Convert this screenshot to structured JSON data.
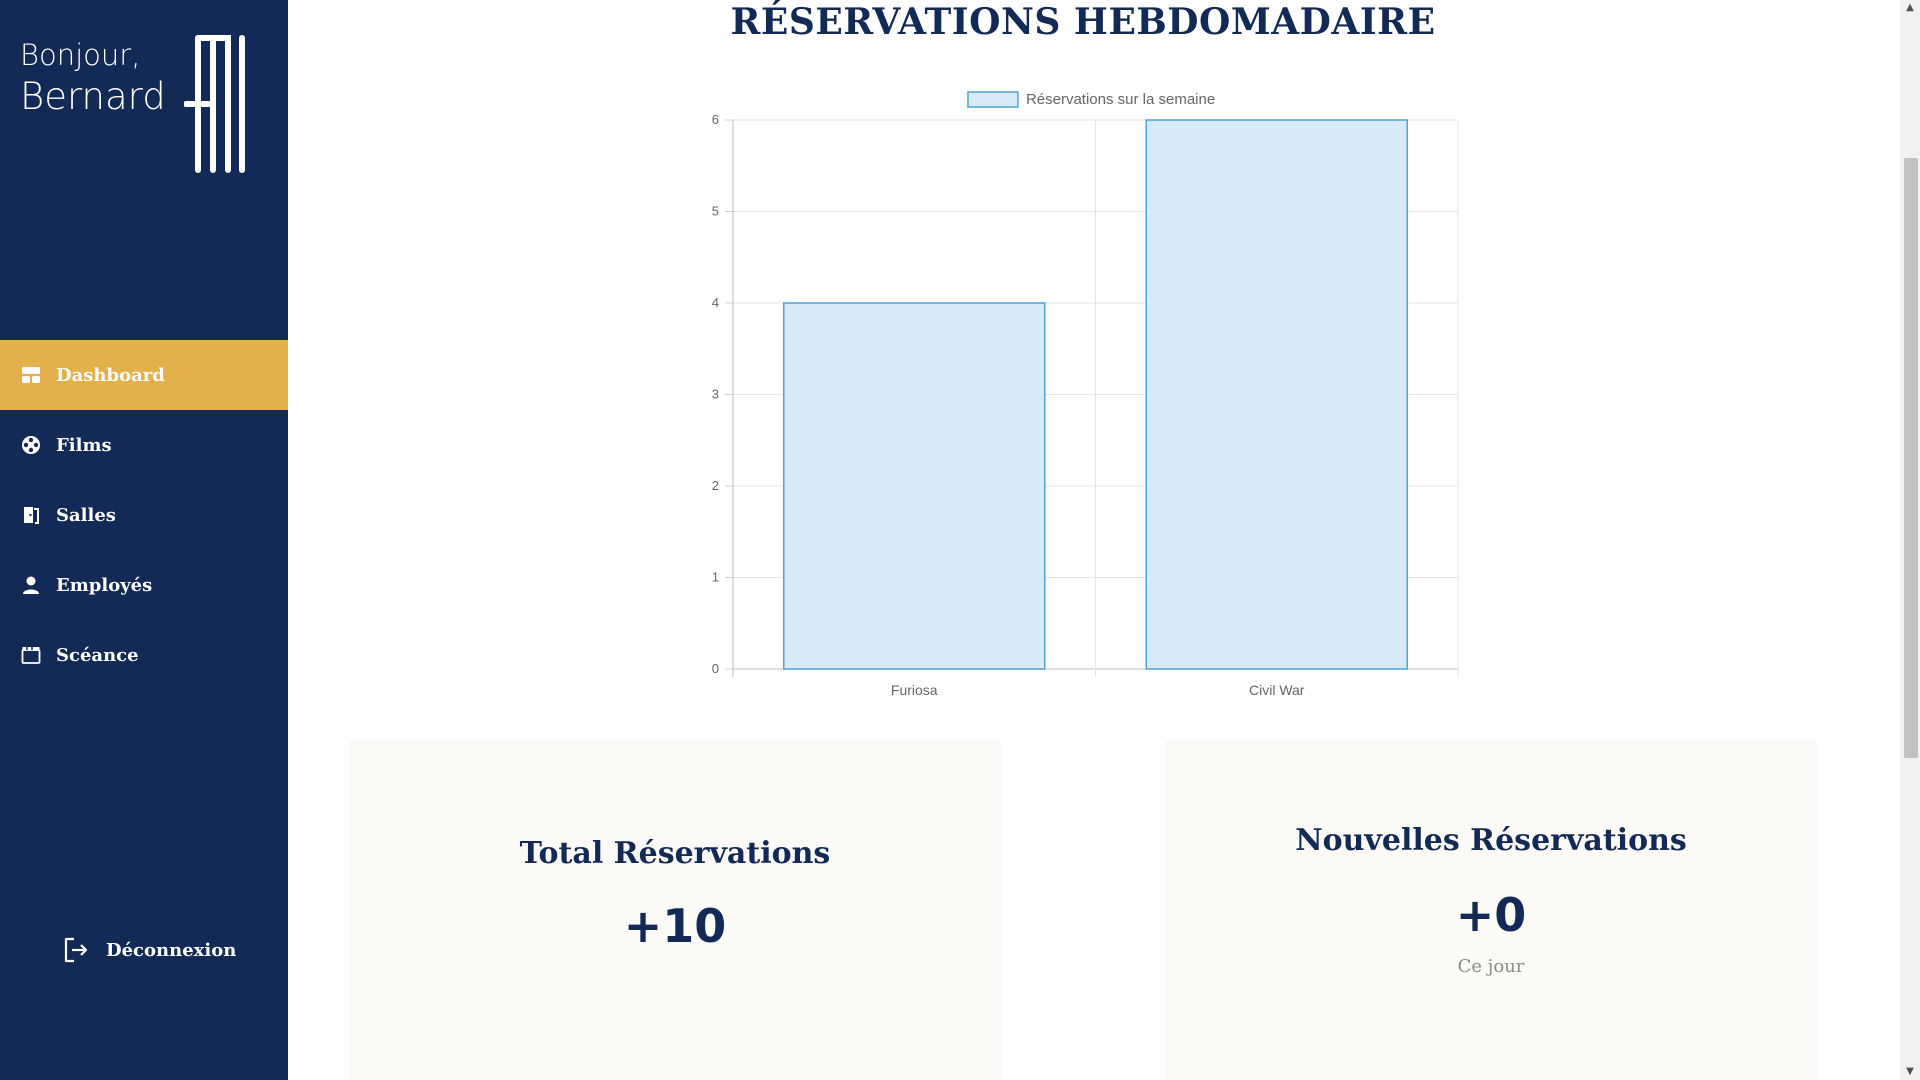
{
  "sidebar": {
    "greeting_hello": "Bonjour,",
    "greeting_name": "Bernard",
    "items": [
      {
        "label": "Dashboard",
        "icon": "dashboard-icon",
        "active": true
      },
      {
        "label": "Films",
        "icon": "film-reel-icon",
        "active": false
      },
      {
        "label": "Salles",
        "icon": "door-icon",
        "active": false
      },
      {
        "label": "Employés",
        "icon": "user-icon",
        "active": false
      },
      {
        "label": "Scéance",
        "icon": "clapperboard-icon",
        "active": false
      }
    ],
    "logout_label": "Déconnexion"
  },
  "main": {
    "title": "RÉSERVATIONS HEBDOMADAIRE"
  },
  "chart_data": {
    "type": "bar",
    "categories": [
      "Furiosa",
      "Civil War"
    ],
    "series": [
      {
        "name": "Réservations sur la semaine",
        "values": [
          4,
          6
        ]
      }
    ],
    "ylim": [
      0,
      6
    ],
    "yticks": [
      0,
      1,
      2,
      3,
      4,
      5,
      6
    ],
    "grid": true,
    "legend": "top-center"
  },
  "cards": {
    "total": {
      "title": "Total Réservations",
      "value": "+10"
    },
    "new": {
      "title": "Nouvelles Réservations",
      "value": "+0",
      "subtitle": "Ce jour"
    }
  },
  "colors": {
    "sidebar_bg": "#132a56",
    "accent": "#e3b04b",
    "bar_fill": "#d6eaf8",
    "bar_stroke": "#4ea3d8",
    "card_bg": "#fcfaf6"
  }
}
